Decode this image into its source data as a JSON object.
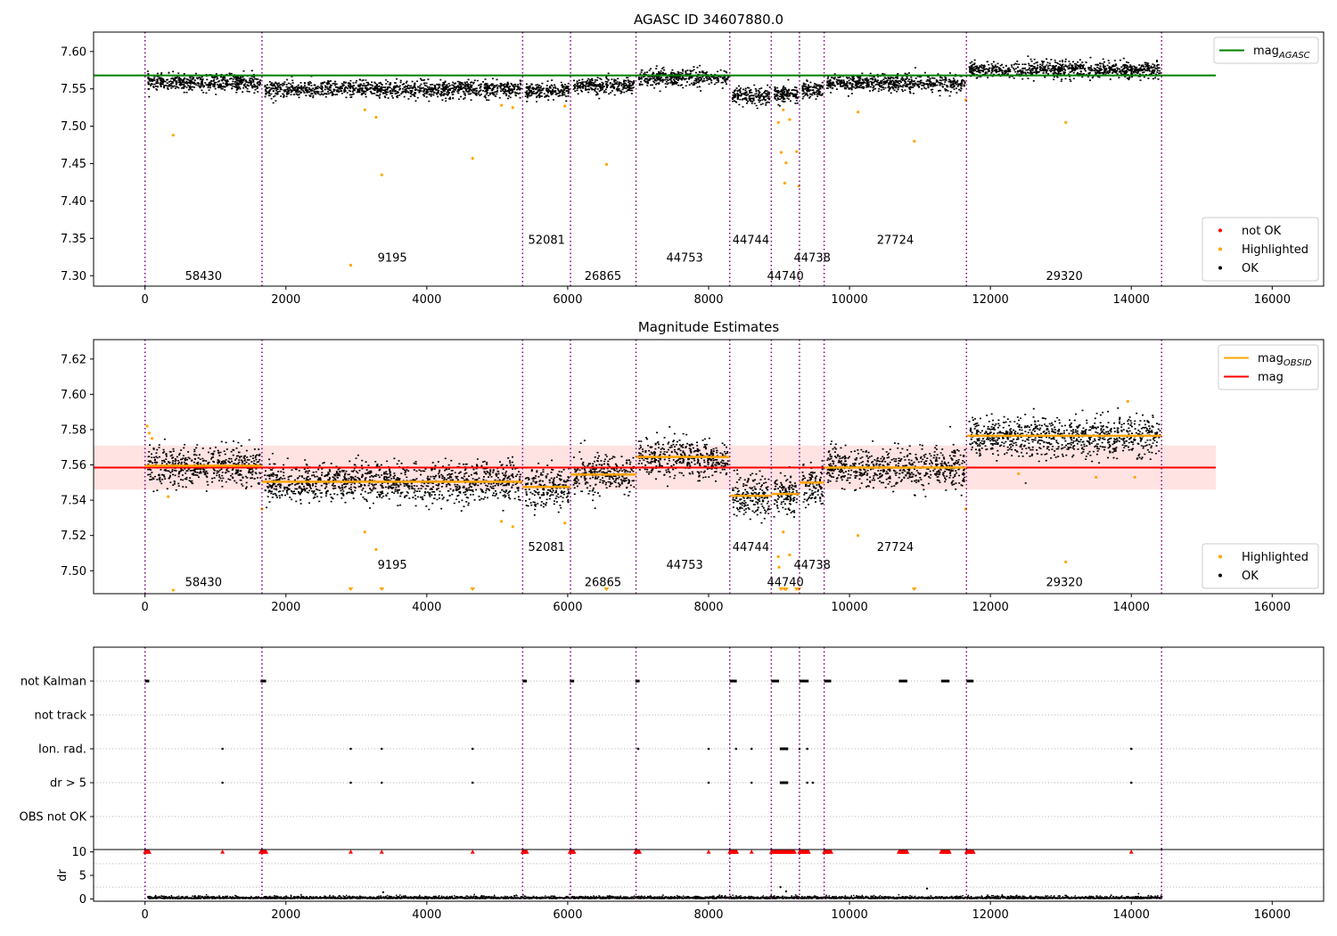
{
  "chart_data": [
    {
      "id": "agasc",
      "type": "scatter",
      "title": "AGASC ID 34607880.0",
      "xlim": [
        -730,
        16730
      ],
      "ylim": [
        7.286,
        7.626
      ],
      "xticks": [
        0,
        2000,
        4000,
        6000,
        8000,
        10000,
        12000,
        14000,
        16000
      ],
      "yticks": [
        7.3,
        7.35,
        7.4,
        7.45,
        7.5,
        7.55,
        7.6
      ],
      "ytick_labels": [
        "7.30",
        "7.35",
        "7.40",
        "7.45",
        "7.50",
        "7.55",
        "7.60"
      ],
      "obs_boundaries": [
        0,
        1660,
        5360,
        6040,
        6970,
        8300,
        8890,
        9290,
        9640,
        11660,
        14430
      ],
      "obs_labels": [
        {
          "text": "58430",
          "x": 830,
          "y": 7.3
        },
        {
          "text": "9195",
          "x": 3510,
          "y": 7.324
        },
        {
          "text": "52081",
          "x": 5700,
          "y": 7.348
        },
        {
          "text": "26865",
          "x": 6500,
          "y": 7.3
        },
        {
          "text": "44753",
          "x": 7660,
          "y": 7.324
        },
        {
          "text": "44744",
          "x": 8600,
          "y": 7.348
        },
        {
          "text": "44740",
          "x": 9090,
          "y": 7.3
        },
        {
          "text": "44738",
          "x": 9470,
          "y": 7.324
        },
        {
          "text": "27724",
          "x": 10650,
          "y": 7.348
        },
        {
          "text": "29320",
          "x": 13050,
          "y": 7.3
        }
      ],
      "reference_line": {
        "name": "mag",
        "subscript": "AGASC",
        "value": 7.568,
        "x_range": [
          -730,
          15200
        ],
        "color": "#008000"
      },
      "segments": [
        {
          "x0": 0,
          "x1": 1660,
          "mean": 7.5595
        },
        {
          "x0": 1660,
          "x1": 5360,
          "mean": 7.5505
        },
        {
          "x0": 5360,
          "x1": 6040,
          "mean": 7.5475
        },
        {
          "x0": 6040,
          "x1": 6970,
          "mean": 7.5545
        },
        {
          "x0": 6970,
          "x1": 8300,
          "mean": 7.5665
        },
        {
          "x0": 8300,
          "x1": 8890,
          "mean": 7.5415
        },
        {
          "x0": 8890,
          "x1": 9290,
          "mean": 7.5435
        },
        {
          "x0": 9290,
          "x1": 9640,
          "mean": 7.55
        },
        {
          "x0": 9640,
          "x1": 11660,
          "mean": 7.5585
        },
        {
          "x0": 11660,
          "x1": 14430,
          "mean": 7.5765
        }
      ],
      "scatter_spread": 0.0055,
      "highlighted_outliers": [
        {
          "x": 400,
          "y": 7.488
        },
        {
          "x": 2920,
          "y": 7.314
        },
        {
          "x": 3120,
          "y": 7.522
        },
        {
          "x": 3280,
          "y": 7.512
        },
        {
          "x": 3360,
          "y": 7.435
        },
        {
          "x": 4650,
          "y": 7.457
        },
        {
          "x": 5060,
          "y": 7.528
        },
        {
          "x": 5220,
          "y": 7.525
        },
        {
          "x": 5960,
          "y": 7.527
        },
        {
          "x": 6550,
          "y": 7.449
        },
        {
          "x": 8990,
          "y": 7.505
        },
        {
          "x": 9030,
          "y": 7.465
        },
        {
          "x": 9060,
          "y": 7.522
        },
        {
          "x": 9080,
          "y": 7.424
        },
        {
          "x": 9100,
          "y": 7.451
        },
        {
          "x": 9150,
          "y": 7.509
        },
        {
          "x": 9250,
          "y": 7.466
        },
        {
          "x": 9280,
          "y": 7.42
        },
        {
          "x": 10120,
          "y": 7.519
        },
        {
          "x": 10920,
          "y": 7.48
        },
        {
          "x": 11650,
          "y": 7.535
        },
        {
          "x": 13070,
          "y": 7.505
        }
      ],
      "legends": [
        {
          "position": "top-right",
          "entries": [
            {
              "label": "mag",
              "subscript": "AGASC",
              "marker": "line",
              "color": "#008000"
            }
          ]
        },
        {
          "position": "bottom-right",
          "entries": [
            {
              "label": "not OK",
              "marker": "dot",
              "color": "#ff0000"
            },
            {
              "label": "Highlighted",
              "marker": "dot",
              "color": "#ffa500"
            },
            {
              "label": "OK",
              "marker": "dot",
              "color": "#000000"
            }
          ]
        }
      ]
    },
    {
      "id": "estimates",
      "type": "scatter",
      "title": "Magnitude Estimates",
      "xlim": [
        -730,
        16730
      ],
      "ylim": [
        7.487,
        7.631
      ],
      "xticks": [
        0,
        2000,
        4000,
        6000,
        8000,
        10000,
        12000,
        14000,
        16000
      ],
      "yticks": [
        7.5,
        7.52,
        7.54,
        7.56,
        7.58,
        7.6,
        7.62
      ],
      "ytick_labels": [
        "7.50",
        "7.52",
        "7.54",
        "7.56",
        "7.58",
        "7.60",
        "7.62"
      ],
      "obs_boundaries": [
        0,
        1660,
        5360,
        6040,
        6970,
        8300,
        8890,
        9290,
        9640,
        11660,
        14430
      ],
      "obs_labels": [
        {
          "text": "58430",
          "x": 830,
          "y": 7.4935
        },
        {
          "text": "9195",
          "x": 3510,
          "y": 7.5035
        },
        {
          "text": "52081",
          "x": 5700,
          "y": 7.5135
        },
        {
          "text": "26865",
          "x": 6500,
          "y": 7.4935
        },
        {
          "text": "44753",
          "x": 7660,
          "y": 7.5035
        },
        {
          "text": "44744",
          "x": 8600,
          "y": 7.5135
        },
        {
          "text": "44740",
          "x": 9090,
          "y": 7.4935
        },
        {
          "text": "44738",
          "x": 9470,
          "y": 7.5035
        },
        {
          "text": "27724",
          "x": 10650,
          "y": 7.5135
        },
        {
          "text": "29320",
          "x": 13050,
          "y": 7.4935
        }
      ],
      "mean_line": {
        "name": "mag",
        "value": 7.5585,
        "x_range": [
          -730,
          15200
        ],
        "color": "#ff0000"
      },
      "band": {
        "low": 7.546,
        "high": 7.571,
        "x_range": [
          -730,
          15200
        ],
        "color": "#ffdcdc"
      },
      "segments": [
        {
          "x0": 0,
          "x1": 1660,
          "mean": 7.5595
        },
        {
          "x0": 1660,
          "x1": 5360,
          "mean": 7.5505
        },
        {
          "x0": 5360,
          "x1": 6040,
          "mean": 7.5475
        },
        {
          "x0": 6040,
          "x1": 6970,
          "mean": 7.5545
        },
        {
          "x0": 6970,
          "x1": 8300,
          "mean": 7.5645
        },
        {
          "x0": 8300,
          "x1": 8890,
          "mean": 7.5425
        },
        {
          "x0": 8890,
          "x1": 9290,
          "mean": 7.5435
        },
        {
          "x0": 9290,
          "x1": 9640,
          "mean": 7.55
        },
        {
          "x0": 9640,
          "x1": 11660,
          "mean": 7.5585
        },
        {
          "x0": 11660,
          "x1": 14430,
          "mean": 7.5765
        }
      ],
      "scatter_spread": 0.0055,
      "highlighted_outliers": [
        {
          "x": 30,
          "y": 7.582
        },
        {
          "x": 60,
          "y": 7.578
        },
        {
          "x": 100,
          "y": 7.575
        },
        {
          "x": 330,
          "y": 7.542
        },
        {
          "x": 400,
          "y": 7.489
        },
        {
          "x": 1660,
          "y": 7.535
        },
        {
          "x": 3120,
          "y": 7.522
        },
        {
          "x": 3280,
          "y": 7.512
        },
        {
          "x": 5060,
          "y": 7.528
        },
        {
          "x": 5220,
          "y": 7.525
        },
        {
          "x": 5960,
          "y": 7.527
        },
        {
          "x": 8990,
          "y": 7.508
        },
        {
          "x": 9060,
          "y": 7.522
        },
        {
          "x": 9150,
          "y": 7.509
        },
        {
          "x": 9000,
          "y": 7.502
        },
        {
          "x": 10120,
          "y": 7.52
        },
        {
          "x": 11650,
          "y": 7.535
        },
        {
          "x": 12400,
          "y": 7.555
        },
        {
          "x": 13070,
          "y": 7.505
        },
        {
          "x": 13500,
          "y": 7.553
        },
        {
          "x": 13950,
          "y": 7.596
        },
        {
          "x": 14050,
          "y": 7.553
        }
      ],
      "off_scale_markers": [
        2920,
        3360,
        4650,
        6550,
        9030,
        9080,
        9100,
        9250,
        9280,
        10920
      ],
      "legends": [
        {
          "position": "top-right",
          "entries": [
            {
              "label": "mag",
              "subscript": "OBSID",
              "marker": "line",
              "color": "#ffa500"
            },
            {
              "label": "mag",
              "marker": "line",
              "color": "#ff0000"
            }
          ]
        },
        {
          "position": "bottom-right",
          "entries": [
            {
              "label": "Highlighted",
              "marker": "dot",
              "color": "#ffa500"
            },
            {
              "label": "OK",
              "marker": "dot",
              "color": "#000000"
            }
          ]
        }
      ]
    },
    {
      "id": "flags",
      "type": "scatter",
      "xlim": [
        -730,
        16730
      ],
      "categories": [
        "not Kalman",
        "not track",
        "Ion. rad.",
        "dr > 5",
        "OBS not OK"
      ],
      "obs_boundaries": [
        0,
        1660,
        5360,
        6040,
        6970,
        8300,
        8890,
        9290,
        9640,
        11660,
        14430
      ],
      "flag_ranges": {
        "not Kalman": [
          [
            0,
            60
          ],
          [
            1640,
            1720
          ],
          [
            5360,
            5420
          ],
          [
            6030,
            6090
          ],
          [
            6960,
            7020
          ],
          [
            8300,
            8400
          ],
          [
            8890,
            9000
          ],
          [
            9290,
            9420
          ],
          [
            9640,
            9740
          ],
          [
            10700,
            10820
          ],
          [
            11300,
            11420
          ],
          [
            11660,
            11760
          ]
        ],
        "not track": [],
        "Ion. rad.": [
          [
            1100,
            1100
          ],
          [
            2920,
            2920
          ],
          [
            3360,
            3360
          ],
          [
            4650,
            4650
          ],
          [
            7000,
            7000
          ],
          [
            8000,
            8000
          ],
          [
            8390,
            8390
          ],
          [
            8610,
            8610
          ],
          [
            9010,
            9130
          ],
          [
            9290,
            9290
          ],
          [
            9400,
            9400
          ],
          [
            14000,
            14000
          ]
        ],
        "dr > 5": [
          [
            1100,
            1100
          ],
          [
            2920,
            2920
          ],
          [
            3360,
            3360
          ],
          [
            4650,
            4650
          ],
          [
            8000,
            8000
          ],
          [
            8610,
            8610
          ],
          [
            9010,
            9130
          ],
          [
            9400,
            9400
          ],
          [
            9480,
            9480
          ],
          [
            14000,
            14000
          ]
        ],
        "OBS not OK": []
      }
    },
    {
      "id": "dr",
      "type": "scatter",
      "ylabel": "dr",
      "xlim": [
        -730,
        16730
      ],
      "ylim": [
        -0.5,
        10.5
      ],
      "xticks": [
        0,
        2000,
        4000,
        6000,
        8000,
        10000,
        12000,
        14000,
        16000
      ],
      "yticks": [
        0,
        5,
        10
      ],
      "ytick_labels": [
        "0",
        "5",
        "10"
      ],
      "obs_boundaries": [
        0,
        1660,
        5360,
        6040,
        6970,
        8300,
        8890,
        9290,
        9640,
        11660,
        14430
      ],
      "capped_value": 10,
      "capped_x_ranges": [
        [
          0,
          60
        ],
        [
          1640,
          1720
        ],
        [
          5360,
          5420
        ],
        [
          6030,
          6090
        ],
        [
          6960,
          7020
        ],
        [
          8300,
          8400
        ],
        [
          8890,
          9000
        ],
        [
          9000,
          9220
        ],
        [
          9290,
          9420
        ],
        [
          9640,
          9740
        ],
        [
          10700,
          10820
        ],
        [
          11300,
          11420
        ],
        [
          11660,
          11760
        ]
      ],
      "capped_singles": [
        1100,
        2920,
        3360,
        4650,
        8000,
        8610,
        14000
      ],
      "spikes": [
        {
          "x": 3380,
          "y": 1.4
        },
        {
          "x": 9020,
          "y": 2.5
        },
        {
          "x": 9100,
          "y": 1.6
        },
        {
          "x": 11100,
          "y": 2.2
        }
      ]
    }
  ]
}
